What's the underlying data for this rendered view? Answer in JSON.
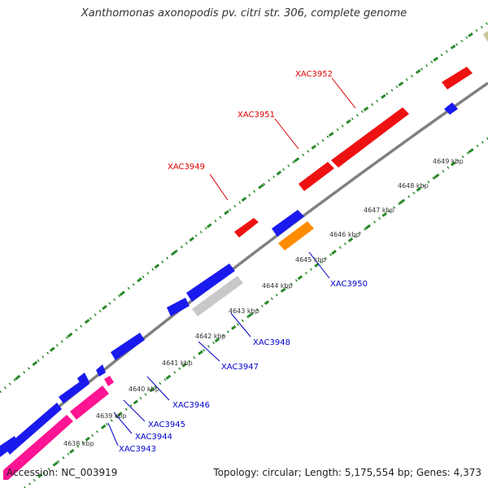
{
  "title": "Xanthomonas axonopodis pv. citri str. 306, complete genome",
  "footer": {
    "accession": "Accession: NC_003919",
    "summary": "Topology: circular; Length: 5,175,554 bp; Genes: 4,373"
  },
  "colors": {
    "backbone": "#808080",
    "tick_dots": "#2a8a2a",
    "forward_gene": "#ee1111",
    "reverse_gene": "#1a1aee",
    "orange_gene": "#ff8c00",
    "gray_gene": "#c8c8c8",
    "pink_gene": "#ff1493",
    "olive_gene": "#c8c89a",
    "forward_label": "#dd0000",
    "reverse_label": "#0000cc"
  },
  "scale": {
    "unit": "kbp",
    "ticks": [
      "4638 kbp",
      "4639 kbp",
      "4640 kbp",
      "4641 kbp",
      "4642 kbp",
      "4643 kbp",
      "4644 kbp",
      "4645 kbp",
      "4646 kbp",
      "4647 kbp",
      "4648 kbp",
      "4649 kbp"
    ]
  },
  "genes": {
    "forward_labels": [
      "XAC3949",
      "XAC3951",
      "XAC3952"
    ],
    "reverse_labels": [
      "XAC3943",
      "XAC3944",
      "XAC3945",
      "XAC3946",
      "XAC3947",
      "XAC3948",
      "XAC3950"
    ]
  }
}
